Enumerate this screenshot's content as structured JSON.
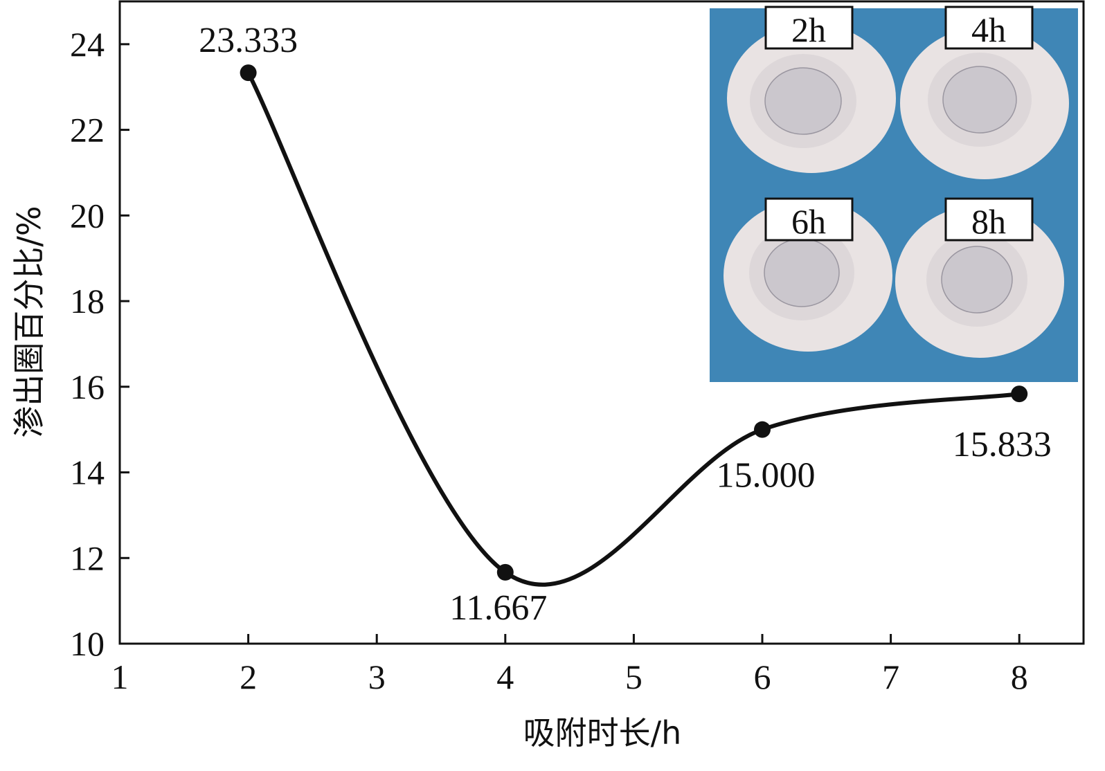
{
  "chart_data": {
    "type": "line",
    "xlabel": "吸附时长/h",
    "ylabel": "渗出圈百分比/%",
    "xlim": [
      1,
      8.5
    ],
    "ylim": [
      10,
      25
    ],
    "x_ticks": [
      "1",
      "2",
      "3",
      "4",
      "5",
      "6",
      "7",
      "8"
    ],
    "y_ticks": [
      "10",
      "12",
      "14",
      "16",
      "18",
      "20",
      "22",
      "24"
    ],
    "grid": false,
    "smooth": true,
    "series": [
      {
        "x": [
          2,
          4,
          6,
          8
        ],
        "y": [
          23.333,
          11.667,
          15.0,
          15.833
        ],
        "labels": [
          "23.333",
          "11.667",
          "15.000",
          "15.833"
        ],
        "color": "#111111",
        "marker": "circle"
      }
    ],
    "inset_photo": {
      "position": "top-right",
      "panels": [
        "2h",
        "4h",
        "6h",
        "8h"
      ],
      "background_color": "#3f86b6",
      "disc_color": "#e9e3e3"
    }
  }
}
